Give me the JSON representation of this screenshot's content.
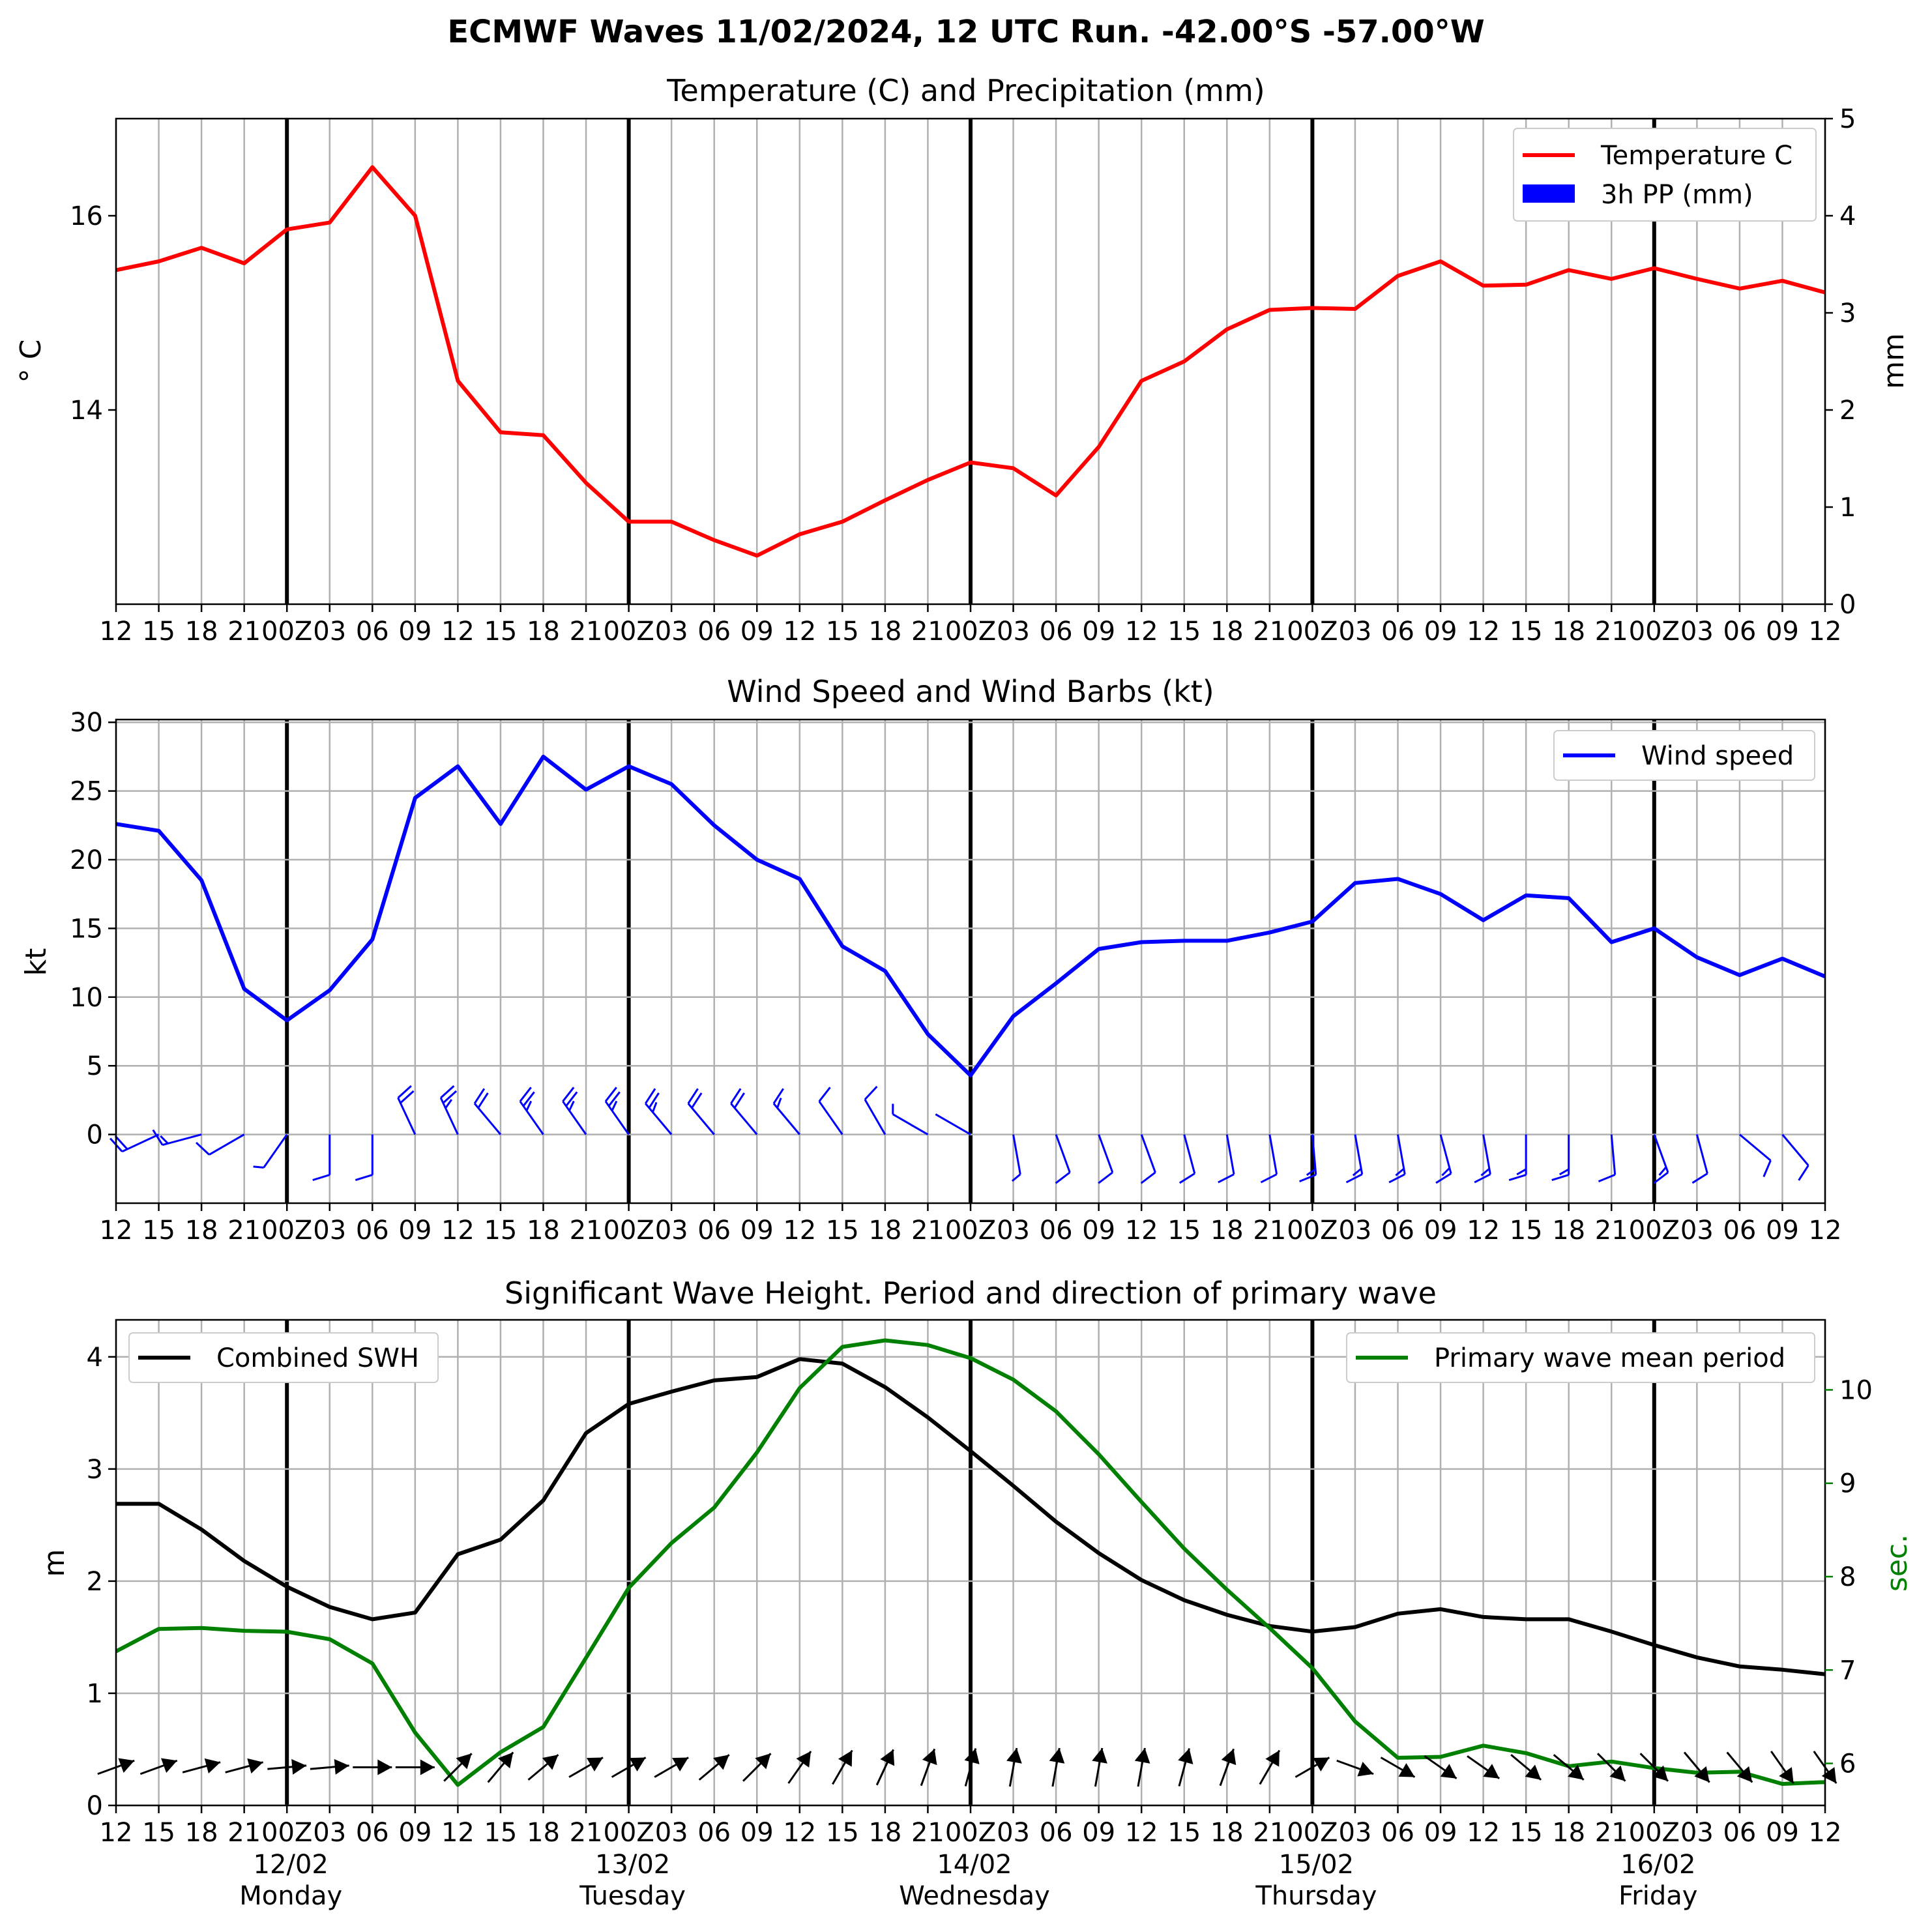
{
  "suptitle": "ECMWF Waves 11/02/2024, 12 UTC Run. -42.00°S -57.00°W",
  "chart_data": [
    {
      "type": "line",
      "title": "Temperature (C) and Precipitation (mm)",
      "ylabel": "° C",
      "ylabel_right": "mm",
      "ylim": [
        12.0,
        17.0
      ],
      "ylim_right": [
        0,
        5
      ],
      "yticks": [
        14,
        16
      ],
      "yticks_right": [
        0,
        1,
        2,
        3,
        4,
        5
      ],
      "legend": [
        "Temperature C",
        "3h PP (mm)"
      ],
      "legend_position": "upper right",
      "grid": true,
      "series": [
        {
          "name": "Temperature C",
          "color": "#ff0000",
          "values": [
            15.44,
            15.53,
            15.67,
            15.51,
            15.86,
            15.93,
            16.5,
            16.0,
            14.3,
            13.77,
            13.74,
            13.25,
            12.85,
            12.85,
            12.66,
            12.5,
            12.72,
            12.85,
            13.07,
            13.28,
            13.46,
            13.4,
            13.12,
            13.62,
            14.3,
            14.5,
            14.83,
            15.03,
            15.05,
            15.04,
            15.38,
            15.53,
            15.28,
            15.29,
            15.44,
            15.35,
            15.46,
            15.35,
            15.25,
            15.33,
            15.21
          ]
        },
        {
          "name": "3h PP (mm)",
          "color": "#0000ff",
          "values": []
        }
      ]
    },
    {
      "type": "line",
      "title": "Wind Speed and Wind Barbs (kt)",
      "ylabel": "kt",
      "ylim": [
        -5,
        30.2
      ],
      "yticks": [
        0,
        5,
        10,
        15,
        20,
        25,
        30
      ],
      "legend": [
        "Wind speed"
      ],
      "legend_position": "upper right",
      "grid": true,
      "series": [
        {
          "name": "Wind speed",
          "color": "#0000ff",
          "values": [
            22.6,
            22.1,
            18.5,
            10.6,
            8.3,
            10.5,
            14.2,
            24.5,
            26.8,
            22.6,
            27.5,
            25.1,
            26.8,
            25.5,
            22.5,
            20.0,
            18.6,
            13.7,
            11.9,
            7.3,
            4.3,
            8.6,
            11.0,
            13.5,
            14.0,
            14.1,
            14.1,
            14.7,
            15.5,
            18.3,
            18.6,
            17.5,
            15.6,
            17.4,
            17.2,
            14.0,
            15.0,
            12.9,
            11.6,
            12.8,
            11.5
          ]
        },
        {
          "name": "Wind barbs",
          "color": "#0000ff",
          "direction_deg": [
            245,
            245,
            255,
            240,
            215,
            180,
            180,
            335,
            335,
            320,
            325,
            325,
            325,
            320,
            320,
            320,
            320,
            325,
            330,
            300,
            300,
            170,
            160,
            160,
            160,
            165,
            170,
            170,
            175,
            170,
            170,
            165,
            170,
            180,
            180,
            175,
            160,
            165,
            130,
            140,
            150
          ]
        }
      ]
    },
    {
      "type": "line",
      "title": "Significant Wave Height. Period and direction of primary wave",
      "ylabel": "m",
      "ylabel_right": "sec.",
      "ylim": [
        0,
        4.33
      ],
      "ylim_right": [
        5.55,
        10.75
      ],
      "yticks": [
        0,
        1,
        2,
        3,
        4
      ],
      "yticks_right": [
        6,
        7,
        8,
        9,
        10
      ],
      "legend": [
        "Combined SWH",
        "Primary wave mean period"
      ],
      "grid": true,
      "series": [
        {
          "name": "Combined SWH",
          "color": "#000000",
          "values": [
            2.69,
            2.69,
            2.46,
            2.18,
            1.95,
            1.77,
            1.66,
            1.72,
            2.24,
            2.37,
            2.72,
            3.32,
            3.58,
            3.69,
            3.79,
            3.82,
            3.98,
            3.94,
            3.73,
            3.46,
            3.16,
            2.85,
            2.53,
            2.25,
            2.01,
            1.83,
            1.7,
            1.6,
            1.55,
            1.59,
            1.71,
            1.75,
            1.68,
            1.66,
            1.66,
            1.55,
            1.43,
            1.32,
            1.24,
            1.21,
            1.17
          ]
        },
        {
          "name": "Primary wave mean period",
          "color": "#008000",
          "values": [
            7.2,
            7.44,
            7.45,
            7.42,
            7.41,
            7.33,
            7.07,
            6.33,
            5.77,
            6.12,
            6.39,
            7.13,
            7.88,
            8.36,
            8.74,
            9.33,
            10.02,
            10.46,
            10.53,
            10.48,
            10.34,
            10.11,
            9.77,
            9.31,
            8.8,
            8.3,
            7.86,
            7.45,
            7.02,
            6.45,
            6.06,
            6.07,
            6.19,
            6.11,
            5.97,
            6.02,
            5.95,
            5.9,
            5.91,
            5.78,
            5.8
          ]
        },
        {
          "name": "Primary wave direction",
          "color": "#000000",
          "direction_deg": [
            250,
            250,
            255,
            255,
            265,
            265,
            270,
            270,
            225,
            220,
            230,
            240,
            240,
            240,
            230,
            225,
            215,
            210,
            205,
            200,
            195,
            190,
            190,
            190,
            190,
            195,
            200,
            210,
            240,
            290,
            300,
            305,
            305,
            310,
            310,
            315,
            315,
            320,
            320,
            325,
            325
          ]
        }
      ]
    }
  ],
  "x_tick_labels": [
    "12",
    "15",
    "18",
    "21",
    "00Z",
    "03",
    "06",
    "09",
    "12",
    "15",
    "18",
    "21",
    "00Z",
    "03",
    "06",
    "09",
    "12",
    "15",
    "18",
    "21",
    "00Z",
    "03",
    "06",
    "09",
    "12",
    "15",
    "18",
    "21",
    "00Z",
    "03",
    "06",
    "09",
    "12",
    "15",
    "18",
    "21",
    "00Z",
    "03",
    "06",
    "09",
    "12"
  ],
  "day_labels": [
    {
      "date": "12/02",
      "day": "Monday"
    },
    {
      "date": "13/02",
      "day": "Tuesday"
    },
    {
      "date": "14/02",
      "day": "Wednesday"
    },
    {
      "date": "15/02",
      "day": "Thursday"
    },
    {
      "date": "16/02",
      "day": "Friday"
    }
  ]
}
